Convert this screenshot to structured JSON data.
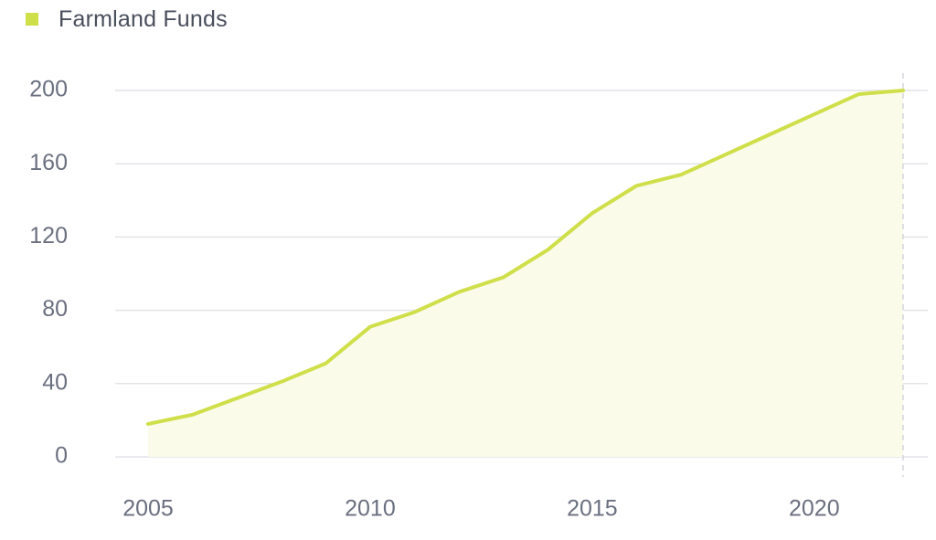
{
  "legend": {
    "label": "Farmland Funds",
    "color": "#cfdf4a"
  },
  "colors": {
    "line": "#cfdf4a",
    "area": "#fafbe9",
    "grid": "#e3e4e8",
    "crosshair": "#d4d6dc",
    "tick_text": "#6b7080"
  },
  "chart_data": {
    "type": "area",
    "title": "",
    "xlabel": "",
    "ylabel": "",
    "xlim": [
      2004.5,
      2022.5
    ],
    "ylim": [
      0,
      200
    ],
    "x_ticks": [
      2005,
      2010,
      2015,
      2020
    ],
    "y_ticks": [
      0,
      40,
      80,
      120,
      160,
      200
    ],
    "grid": "horizontal",
    "legend_position": "top-left",
    "series": [
      {
        "name": "Farmland Funds",
        "x": [
          2005,
          2006,
          2007,
          2008,
          2009,
          2010,
          2011,
          2012,
          2013,
          2014,
          2015,
          2016,
          2017,
          2018,
          2019,
          2020,
          2021,
          2022
        ],
        "values": [
          18,
          23,
          32,
          41,
          51,
          71,
          79,
          90,
          98,
          113,
          133,
          148,
          154,
          165,
          176,
          187,
          198,
          200
        ]
      }
    ]
  }
}
